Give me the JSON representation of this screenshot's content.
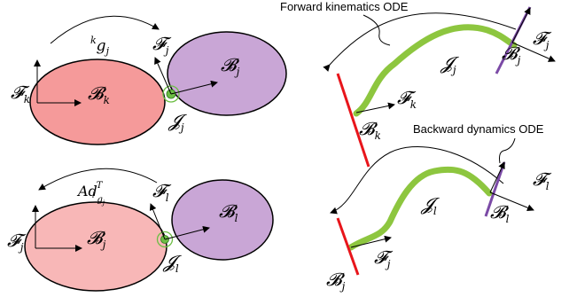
{
  "top_left": {
    "frame_k": "𝓕",
    "frame_k_sub": "k",
    "frame_j": "𝓕",
    "frame_j_sub": "j",
    "body_k": "𝓑",
    "body_k_sub": "k",
    "body_j": "𝓑",
    "body_j_sub": "j",
    "joint": "𝓙",
    "joint_sub": "j",
    "transform_pre": "k",
    "transform_g": "g",
    "transform_sub": "j"
  },
  "bottom_left": {
    "frame_j": "𝓕",
    "frame_j_sub": "j",
    "frame_l": "𝓕",
    "frame_l_sub": "l",
    "body_j": "𝓑",
    "body_j_sub": "j",
    "body_l": "𝓑",
    "body_l_sub": "l",
    "joint": "𝓙",
    "joint_sub": "l",
    "adjoint_main": "Ad",
    "adjoint_sup": "T",
    "adjoint_sub_g": "g",
    "adjoint_sub_j": "j",
    "adjoint_sub_l": "l"
  },
  "top_right": {
    "caption": "Forward kinematics ODE",
    "frame_k": "𝓕",
    "frame_k_sub": "k",
    "frame_j": "𝓕",
    "frame_j_sub": "j",
    "body_k": "𝓑",
    "body_k_sub": "k",
    "body_j": "𝓑",
    "body_j_sub": "j",
    "joint": "𝓙",
    "joint_sub": "j"
  },
  "bottom_right": {
    "caption": "Backward dynamics ODE",
    "frame_l": "𝓕",
    "frame_l_sub": "l",
    "frame_j": "𝓕",
    "frame_j_sub": "j",
    "body_l": "𝓑",
    "body_l_sub": "l",
    "body_j": "𝓑",
    "body_j_sub": "j",
    "joint": "𝓙",
    "joint_sub": "l"
  },
  "colors": {
    "body_red_fill": "#f59a9a",
    "body_red_stroke": "#000000",
    "body_pink_fill": "#f8b7b7",
    "body_purple_fill": "#c9a6d6",
    "joint_green": "#6dbe45",
    "rod_green": "#8dc63f",
    "red_line": "#e8151b",
    "purple_line": "#7b4aa6",
    "arrow": "#000000"
  }
}
